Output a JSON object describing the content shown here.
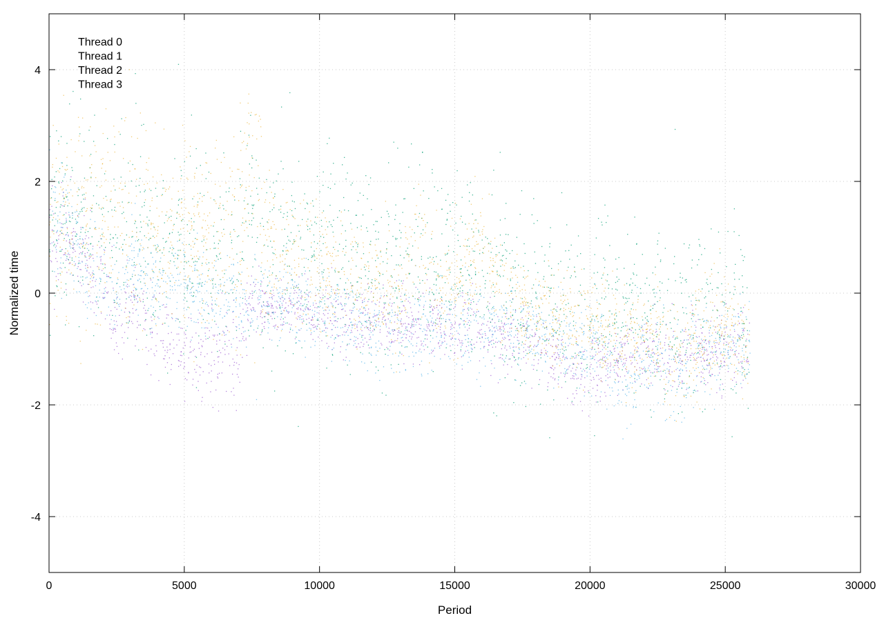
{
  "chart_data": {
    "type": "scatter",
    "title": "",
    "xlabel": "Period",
    "ylabel": "Normalized time",
    "xlim": [
      0,
      30000
    ],
    "ylim": [
      -5,
      5
    ],
    "xticks": [
      0,
      5000,
      10000,
      15000,
      20000,
      25000,
      30000
    ],
    "xtick_labels": [
      "0",
      "5000",
      "10000",
      "15000",
      "20000",
      "25000",
      "30000"
    ],
    "yticks": [
      -4,
      -2,
      0,
      2,
      4
    ],
    "ytick_labels": [
      "-4",
      "-2",
      "0",
      "2",
      "4"
    ],
    "grid": true,
    "legend_position": "top-left",
    "series": [
      {
        "name": "Thread 0",
        "color": "#9b59d0",
        "x": [
          0,
          1000,
          2000,
          2500,
          3000,
          4000,
          5000,
          6000,
          7000,
          7500,
          8000,
          9000,
          10000,
          11000,
          12000,
          13000,
          14000,
          15000,
          16000,
          17000,
          18000,
          19000,
          20000,
          21000,
          22000,
          23000,
          24000,
          25000,
          25900
        ],
        "y": [
          1.0,
          0.8,
          0.2,
          -0.6,
          0.0,
          -0.9,
          -1.0,
          -1.0,
          -1.2,
          -0.1,
          -0.3,
          -0.3,
          -0.4,
          -0.5,
          -0.5,
          -0.5,
          -0.6,
          -0.6,
          -0.7,
          -0.8,
          -0.9,
          -1.2,
          -1.4,
          -1.2,
          -1.1,
          -1.2,
          -1.1,
          -1.1,
          -1.0
        ],
        "spread": [
          0.5,
          0.4,
          0.4,
          0.5,
          0.4,
          0.4,
          0.35,
          0.4,
          0.4,
          0.3,
          0.25,
          0.25,
          0.25,
          0.3,
          0.3,
          0.3,
          0.3,
          0.3,
          0.3,
          0.3,
          0.3,
          0.3,
          0.3,
          0.3,
          0.3,
          0.35,
          0.35,
          0.35,
          0.35
        ],
        "count": 1700
      },
      {
        "name": "Thread 1",
        "color": "#009e73",
        "x": [
          0,
          1000,
          2000,
          3000,
          4000,
          5000,
          6000,
          7000,
          7500,
          8000,
          9000,
          10000,
          11000,
          12000,
          13000,
          14000,
          15000,
          16000,
          17000,
          18000,
          19000,
          20000,
          21000,
          22000,
          23000,
          24000,
          25000,
          25900
        ],
        "y": [
          1.3,
          1.1,
          0.9,
          1.0,
          0.8,
          0.9,
          0.8,
          0.8,
          1.2,
          1.0,
          0.7,
          0.6,
          0.5,
          0.3,
          0.4,
          0.4,
          0.5,
          0.4,
          0.0,
          -0.2,
          -0.3,
          -0.4,
          -0.2,
          -0.2,
          -0.5,
          -0.4,
          -0.3,
          -0.4
        ],
        "spread": [
          0.9,
          0.9,
          0.9,
          0.9,
          0.9,
          0.9,
          0.9,
          0.9,
          1.0,
          0.9,
          0.9,
          0.9,
          0.9,
          0.9,
          0.9,
          0.9,
          0.9,
          0.9,
          0.8,
          0.8,
          0.8,
          0.8,
          0.8,
          0.8,
          0.8,
          0.8,
          0.8,
          0.8
        ],
        "count": 1700
      },
      {
        "name": "Thread 2",
        "color": "#56b4e9",
        "x": [
          0,
          1000,
          2000,
          2500,
          3000,
          4000,
          5000,
          6000,
          7000,
          8000,
          9000,
          10000,
          11000,
          12000,
          13000,
          14000,
          15000,
          16000,
          17000,
          18000,
          19000,
          20000,
          21000,
          21500,
          22000,
          23000,
          24000,
          25000,
          25900
        ],
        "y": [
          1.5,
          0.8,
          0.3,
          -0.1,
          0.5,
          0.2,
          0.1,
          0.0,
          -0.2,
          -0.1,
          -0.2,
          -0.3,
          -0.4,
          -0.6,
          -0.6,
          -0.6,
          -0.6,
          -0.6,
          -0.6,
          -0.7,
          -0.8,
          -0.9,
          -1.5,
          -1.7,
          -1.1,
          -1.3,
          -1.2,
          -1.0,
          -0.9
        ],
        "spread": [
          0.7,
          0.45,
          0.4,
          0.4,
          0.4,
          0.4,
          0.4,
          0.4,
          0.4,
          0.35,
          0.35,
          0.35,
          0.35,
          0.4,
          0.4,
          0.4,
          0.4,
          0.4,
          0.35,
          0.35,
          0.35,
          0.4,
          0.4,
          0.4,
          0.4,
          0.45,
          0.45,
          0.4,
          0.4
        ],
        "count": 1700
      },
      {
        "name": "Thread 3",
        "color": "#e69f00",
        "x": [
          0,
          1000,
          2000,
          3000,
          4000,
          5000,
          6000,
          7000,
          7600,
          8000,
          9000,
          10000,
          11000,
          12000,
          13000,
          13600,
          14000,
          15000,
          16000,
          16500,
          17000,
          18000,
          19000,
          20000,
          21000,
          22000,
          23000,
          24000,
          25000,
          25900
        ],
        "y": [
          1.2,
          1.5,
          1.3,
          1.4,
          1.1,
          1.1,
          1.0,
          1.0,
          2.6,
          1.0,
          0.6,
          0.4,
          0.3,
          0.1,
          0.0,
          1.2,
          0.1,
          0.1,
          0.9,
          0.5,
          -0.2,
          -0.4,
          -0.5,
          -0.5,
          -0.9,
          -0.8,
          -1.1,
          -0.8,
          -0.7,
          -0.8
        ],
        "spread": [
          0.7,
          0.9,
          0.9,
          0.9,
          0.8,
          0.8,
          0.8,
          0.9,
          1.4,
          0.7,
          0.6,
          0.55,
          0.5,
          0.5,
          0.5,
          0.8,
          0.5,
          0.5,
          0.5,
          0.5,
          0.45,
          0.4,
          0.4,
          0.4,
          0.45,
          0.45,
          0.55,
          0.5,
          0.45,
          0.45
        ],
        "count": 1900
      }
    ]
  }
}
